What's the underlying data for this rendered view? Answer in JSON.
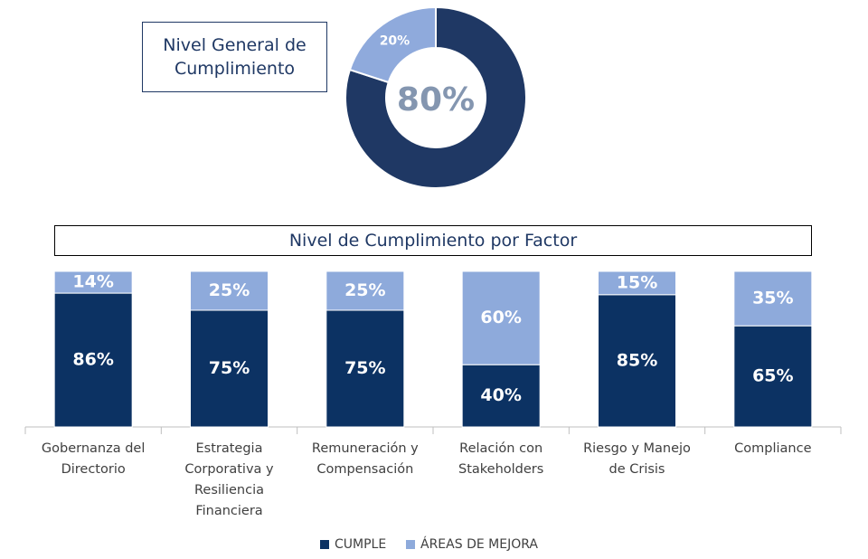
{
  "chart_data": [
    {
      "type": "donut",
      "title": "Nivel General de Cumplimiento",
      "values": [
        80,
        20
      ],
      "value_labels": [
        "80%",
        "20%"
      ],
      "colors": [
        "#1f3864",
        "#8faadc"
      ]
    },
    {
      "type": "stacked_bar",
      "title": "Nivel de Cumplimiento por Factor",
      "categories": [
        "Gobernanza del Directorio",
        "Estrategia Corporativa y Resiliencia Financiera",
        "Remuneración y Compensación",
        "Relación con Stakeholders",
        "Riesgo y Manejo de Crisis",
        "Compliance"
      ],
      "series": [
        {
          "name": "CUMPLE",
          "color": "#0c3263",
          "values": [
            86,
            75,
            75,
            40,
            85,
            65
          ],
          "value_labels": [
            "86%",
            "75%",
            "75%",
            "40%",
            "85%",
            "65%"
          ]
        },
        {
          "name": "ÁREAS DE MEJORA",
          "color": "#8eaadb",
          "values": [
            14,
            25,
            25,
            60,
            15,
            35
          ],
          "value_labels": [
            "14%",
            "25%",
            "25%",
            "60%",
            "15%",
            "35%"
          ]
        }
      ],
      "legend": "bottom"
    }
  ]
}
